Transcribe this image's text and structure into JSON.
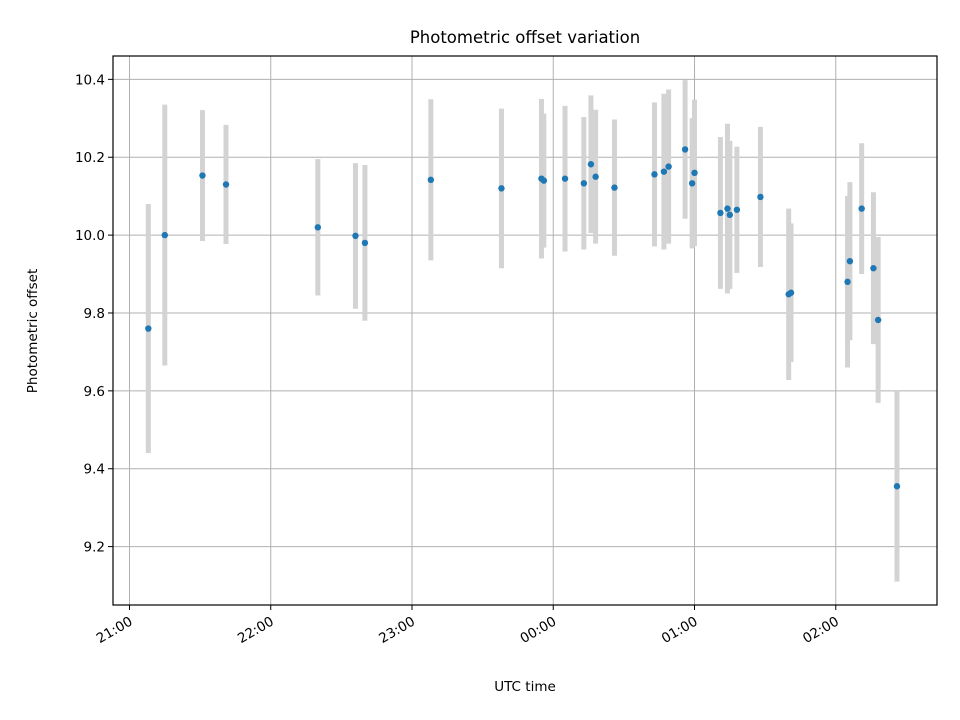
{
  "chart_data": {
    "type": "scatter",
    "title": "Photometric offset variation",
    "xlabel": "UTC time",
    "ylabel": "Photometric offset",
    "x_axis_type": "time",
    "x_reference_date": "",
    "xlim": [
      "20:53",
      "02:43"
    ],
    "ylim": [
      9.05,
      10.46
    ],
    "grid": true,
    "x_ticks": [
      "21:00",
      "22:00",
      "23:00",
      "00:00",
      "01:00",
      "02:00"
    ],
    "y_ticks": [
      "9.2",
      "9.4",
      "9.6",
      "9.8",
      "10.0",
      "10.2",
      "10.4"
    ],
    "colors": {
      "point": "#1f77b4",
      "errorbar": "#d3d3d3",
      "grid": "#b0b0b0"
    },
    "series": [
      {
        "points": [
          {
            "x": "21:08",
            "y": 9.76,
            "yerr": 0.32
          },
          {
            "x": "21:15",
            "y": 10.0,
            "yerr": 0.335
          },
          {
            "x": "21:31",
            "y": 10.153,
            "yerr": 0.168
          },
          {
            "x": "21:41",
            "y": 10.13,
            "yerr": 0.153
          },
          {
            "x": "22:20",
            "y": 10.02,
            "yerr": 0.175
          },
          {
            "x": "22:36",
            "y": 9.998,
            "yerr": 0.187
          },
          {
            "x": "22:40",
            "y": 9.98,
            "yerr": 0.2
          },
          {
            "x": "23:08",
            "y": 10.142,
            "yerr": 0.207
          },
          {
            "x": "23:38",
            "y": 10.12,
            "yerr": 0.205
          },
          {
            "x": "23:55",
            "y": 10.145,
            "yerr": 0.205
          },
          {
            "x": "23:56",
            "y": 10.14,
            "yerr": 0.172
          },
          {
            "x": "00:05",
            "y": 10.145,
            "yerr": 0.187
          },
          {
            "x": "00:13",
            "y": 10.133,
            "yerr": 0.17
          },
          {
            "x": "00:16",
            "y": 10.182,
            "yerr": 0.177
          },
          {
            "x": "00:18",
            "y": 10.15,
            "yerr": 0.172
          },
          {
            "x": "00:26",
            "y": 10.122,
            "yerr": 0.175
          },
          {
            "x": "00:43",
            "y": 10.156,
            "yerr": 0.185
          },
          {
            "x": "00:47",
            "y": 10.163,
            "yerr": 0.2
          },
          {
            "x": "00:49",
            "y": 10.176,
            "yerr": 0.198
          },
          {
            "x": "00:56",
            "y": 10.22,
            "yerr": 0.178
          },
          {
            "x": "00:59",
            "y": 10.133,
            "yerr": 0.167
          },
          {
            "x": "01:00",
            "y": 10.16,
            "yerr": 0.188
          },
          {
            "x": "01:11",
            "y": 10.057,
            "yerr": 0.195
          },
          {
            "x": "01:14",
            "y": 10.068,
            "yerr": 0.218
          },
          {
            "x": "01:15",
            "y": 10.052,
            "yerr": 0.19
          },
          {
            "x": "01:18",
            "y": 10.065,
            "yerr": 0.162
          },
          {
            "x": "01:28",
            "y": 10.098,
            "yerr": 0.18
          },
          {
            "x": "01:40",
            "y": 9.848,
            "yerr": 0.22
          },
          {
            "x": "01:41",
            "y": 9.852,
            "yerr": 0.178
          },
          {
            "x": "02:05",
            "y": 9.88,
            "yerr": 0.22
          },
          {
            "x": "02:06",
            "y": 9.933,
            "yerr": 0.203
          },
          {
            "x": "02:11",
            "y": 10.068,
            "yerr": 0.168
          },
          {
            "x": "02:16",
            "y": 9.915,
            "yerr": 0.195
          },
          {
            "x": "02:18",
            "y": 9.782,
            "yerr": 0.213
          },
          {
            "x": "02:26",
            "y": 9.355,
            "yerr": 0.245
          }
        ]
      }
    ]
  }
}
